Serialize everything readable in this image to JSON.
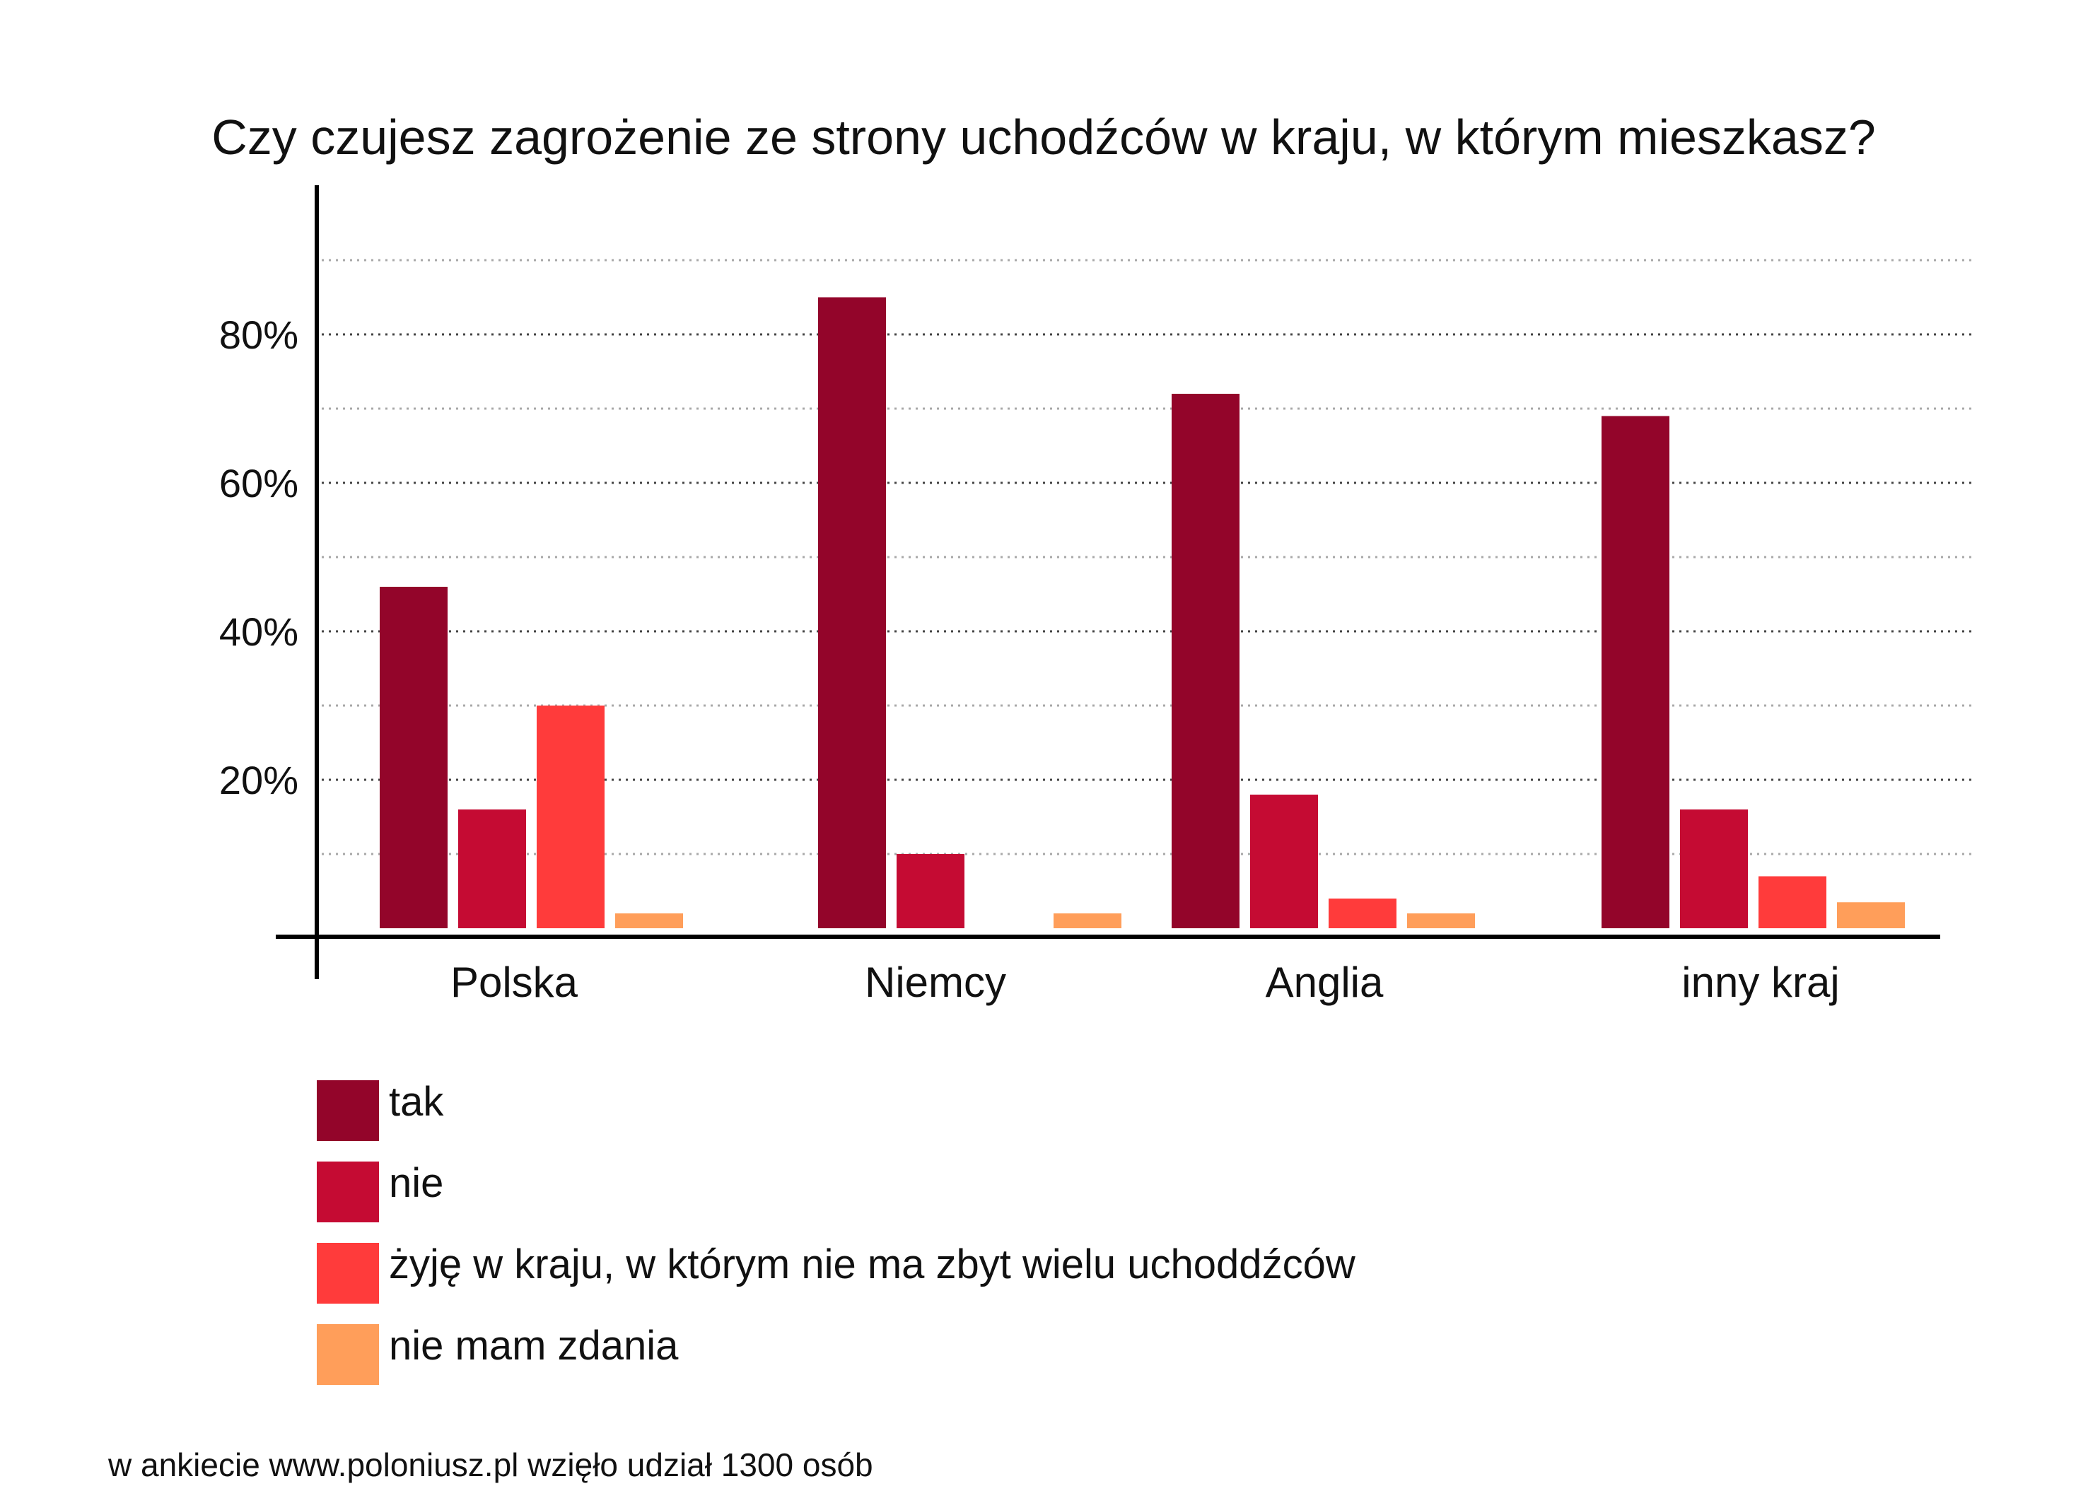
{
  "chart_data": {
    "type": "bar",
    "title": "Czy czujesz zagrożenie ze strony uchodźców w kraju, w którym mieszkasz?",
    "categories": [
      "Polska",
      "Niemcy",
      "Anglia",
      "inny kraj"
    ],
    "series": [
      {
        "name": "tak",
        "color": "#93052A",
        "values": [
          46,
          85,
          72,
          69
        ]
      },
      {
        "name": "nie",
        "color": "#C50B33",
        "values": [
          16,
          10,
          18,
          16
        ]
      },
      {
        "name": "żyję w kraju, w którym nie ma zbyt wielu uchoddźców",
        "color": "#FF3B3B",
        "values": [
          30,
          0,
          4,
          7
        ]
      },
      {
        "name": "nie mam zdania",
        "color": "#FF9E5A",
        "values": [
          2,
          2,
          2,
          3.5
        ]
      }
    ],
    "y_ticks": [
      "20%",
      "40%",
      "60%",
      "80%"
    ],
    "ylim": [
      0,
      100
    ],
    "grid": true,
    "legend_position": "bottom-left"
  },
  "footnote": "w ankiecie www.poloniusz.pl wzięło udział 1300 osób"
}
